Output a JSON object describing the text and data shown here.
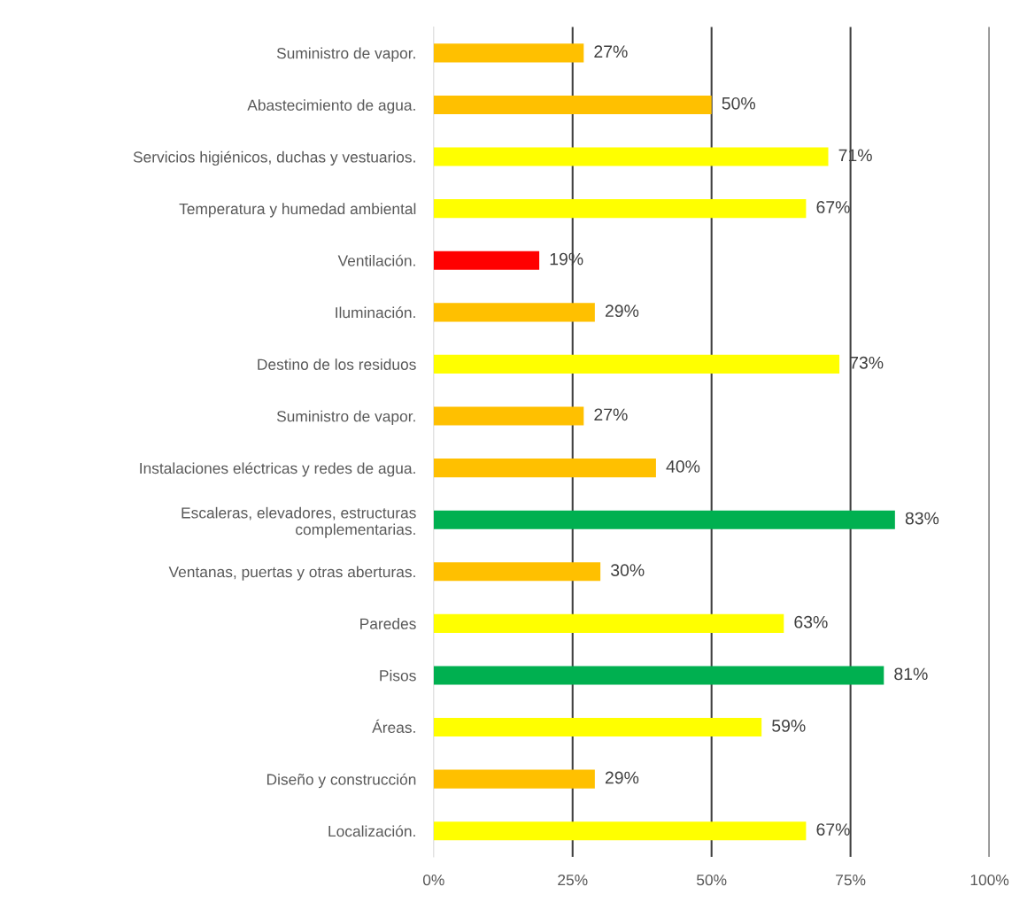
{
  "chart_data": {
    "type": "bar",
    "orientation": "horizontal",
    "categories": [
      "Suministro de vapor.",
      "Abastecimiento de agua.",
      "Servicios higiénicos, duchas y vestuarios.",
      "Temperatura y humedad ambiental",
      "Ventilación.",
      "Iluminación.",
      "Destino de los residuos",
      "Suministro de vapor.",
      "Instalaciones eléctricas y redes de agua.",
      "Escaleras, elevadores, estructuras\ncomplementarias.",
      "Ventanas, puertas y otras aberturas.",
      "Paredes",
      "Pisos",
      "Áreas.",
      "Diseño y construcción",
      "Localización."
    ],
    "values": [
      27,
      50,
      71,
      67,
      19,
      29,
      73,
      27,
      40,
      83,
      30,
      63,
      81,
      59,
      29,
      67
    ],
    "colors": [
      "#ffc000",
      "#ffc000",
      "#ffff00",
      "#ffff00",
      "#ff0000",
      "#ffc000",
      "#ffff00",
      "#ffc000",
      "#ffc000",
      "#00b050",
      "#ffc000",
      "#ffff00",
      "#00b050",
      "#ffff00",
      "#ffc000",
      "#ffff00"
    ],
    "value_labels": [
      "27%",
      "50%",
      "71%",
      "67%",
      "19%",
      "29%",
      "73%",
      "27%",
      "40%",
      "83%",
      "30%",
      "63%",
      "81%",
      "59%",
      "29%",
      "67%"
    ],
    "xlim": [
      0,
      100
    ],
    "xticks": [
      {
        "value": 0,
        "label": "0%"
      },
      {
        "value": 25,
        "label": "25%"
      },
      {
        "value": 50,
        "label": "50%"
      },
      {
        "value": 75,
        "label": "75%"
      },
      {
        "value": 100,
        "label": "100%"
      }
    ],
    "grid": "x"
  }
}
